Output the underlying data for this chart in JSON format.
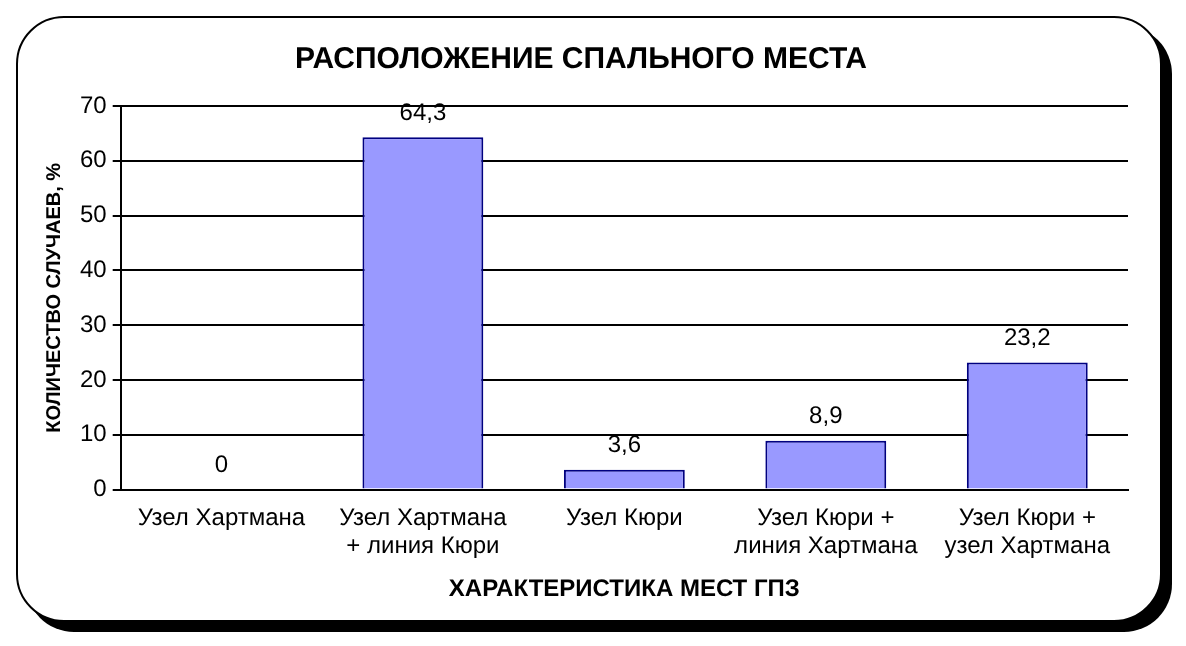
{
  "chart_data": {
    "type": "bar",
    "title": "РАСПОЛОЖЕНИЕ СПАЛЬНОГО МЕСТА",
    "xlabel": "ХАРАКТЕРИСТИКА МЕСТ ГПЗ",
    "ylabel": "КОЛИЧЕСТВО СЛУЧАЕВ, %",
    "categories": [
      "Узел Хартмана",
      "Узел Хартмана + линия Кюри",
      "Узел Кюри",
      "Узел Кюри + линия Хартмана",
      "Узел Кюри + узел Хартмана"
    ],
    "values": [
      0,
      64.3,
      3.6,
      8.9,
      23.2
    ],
    "value_labels": [
      "0",
      "64,3",
      "3,6",
      "8,9",
      "23,2"
    ],
    "color": "#9999ff",
    "ylim": [
      0,
      70
    ],
    "yticks": [
      0,
      10,
      20,
      30,
      40,
      50,
      60,
      70
    ],
    "grid": "y",
    "legend": false
  }
}
